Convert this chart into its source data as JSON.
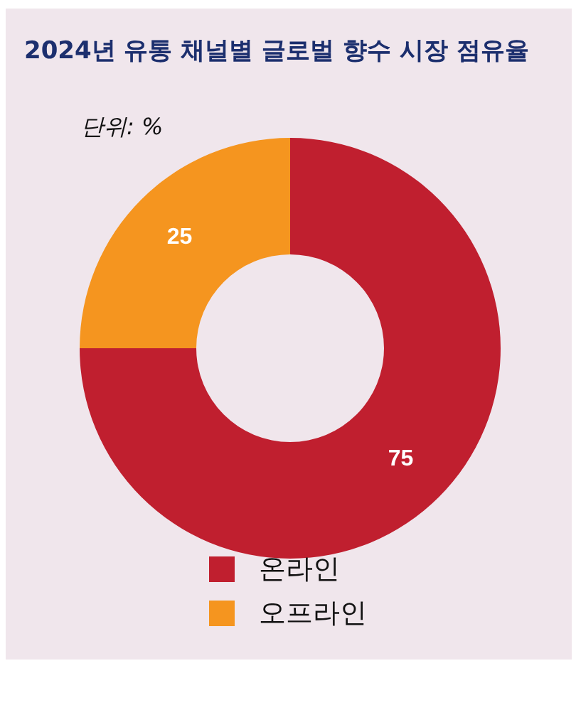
{
  "chart_data": {
    "type": "donut",
    "title": "2024년 유통 채널별 글로벌 향수 시장 점유율",
    "subtitle": "단위: %",
    "categories": [
      "온라인",
      "오프라인"
    ],
    "values": [
      75,
      25
    ],
    "colors": [
      "#c01f2f",
      "#f5951f"
    ],
    "data_labels": true,
    "legend": "bottom"
  }
}
